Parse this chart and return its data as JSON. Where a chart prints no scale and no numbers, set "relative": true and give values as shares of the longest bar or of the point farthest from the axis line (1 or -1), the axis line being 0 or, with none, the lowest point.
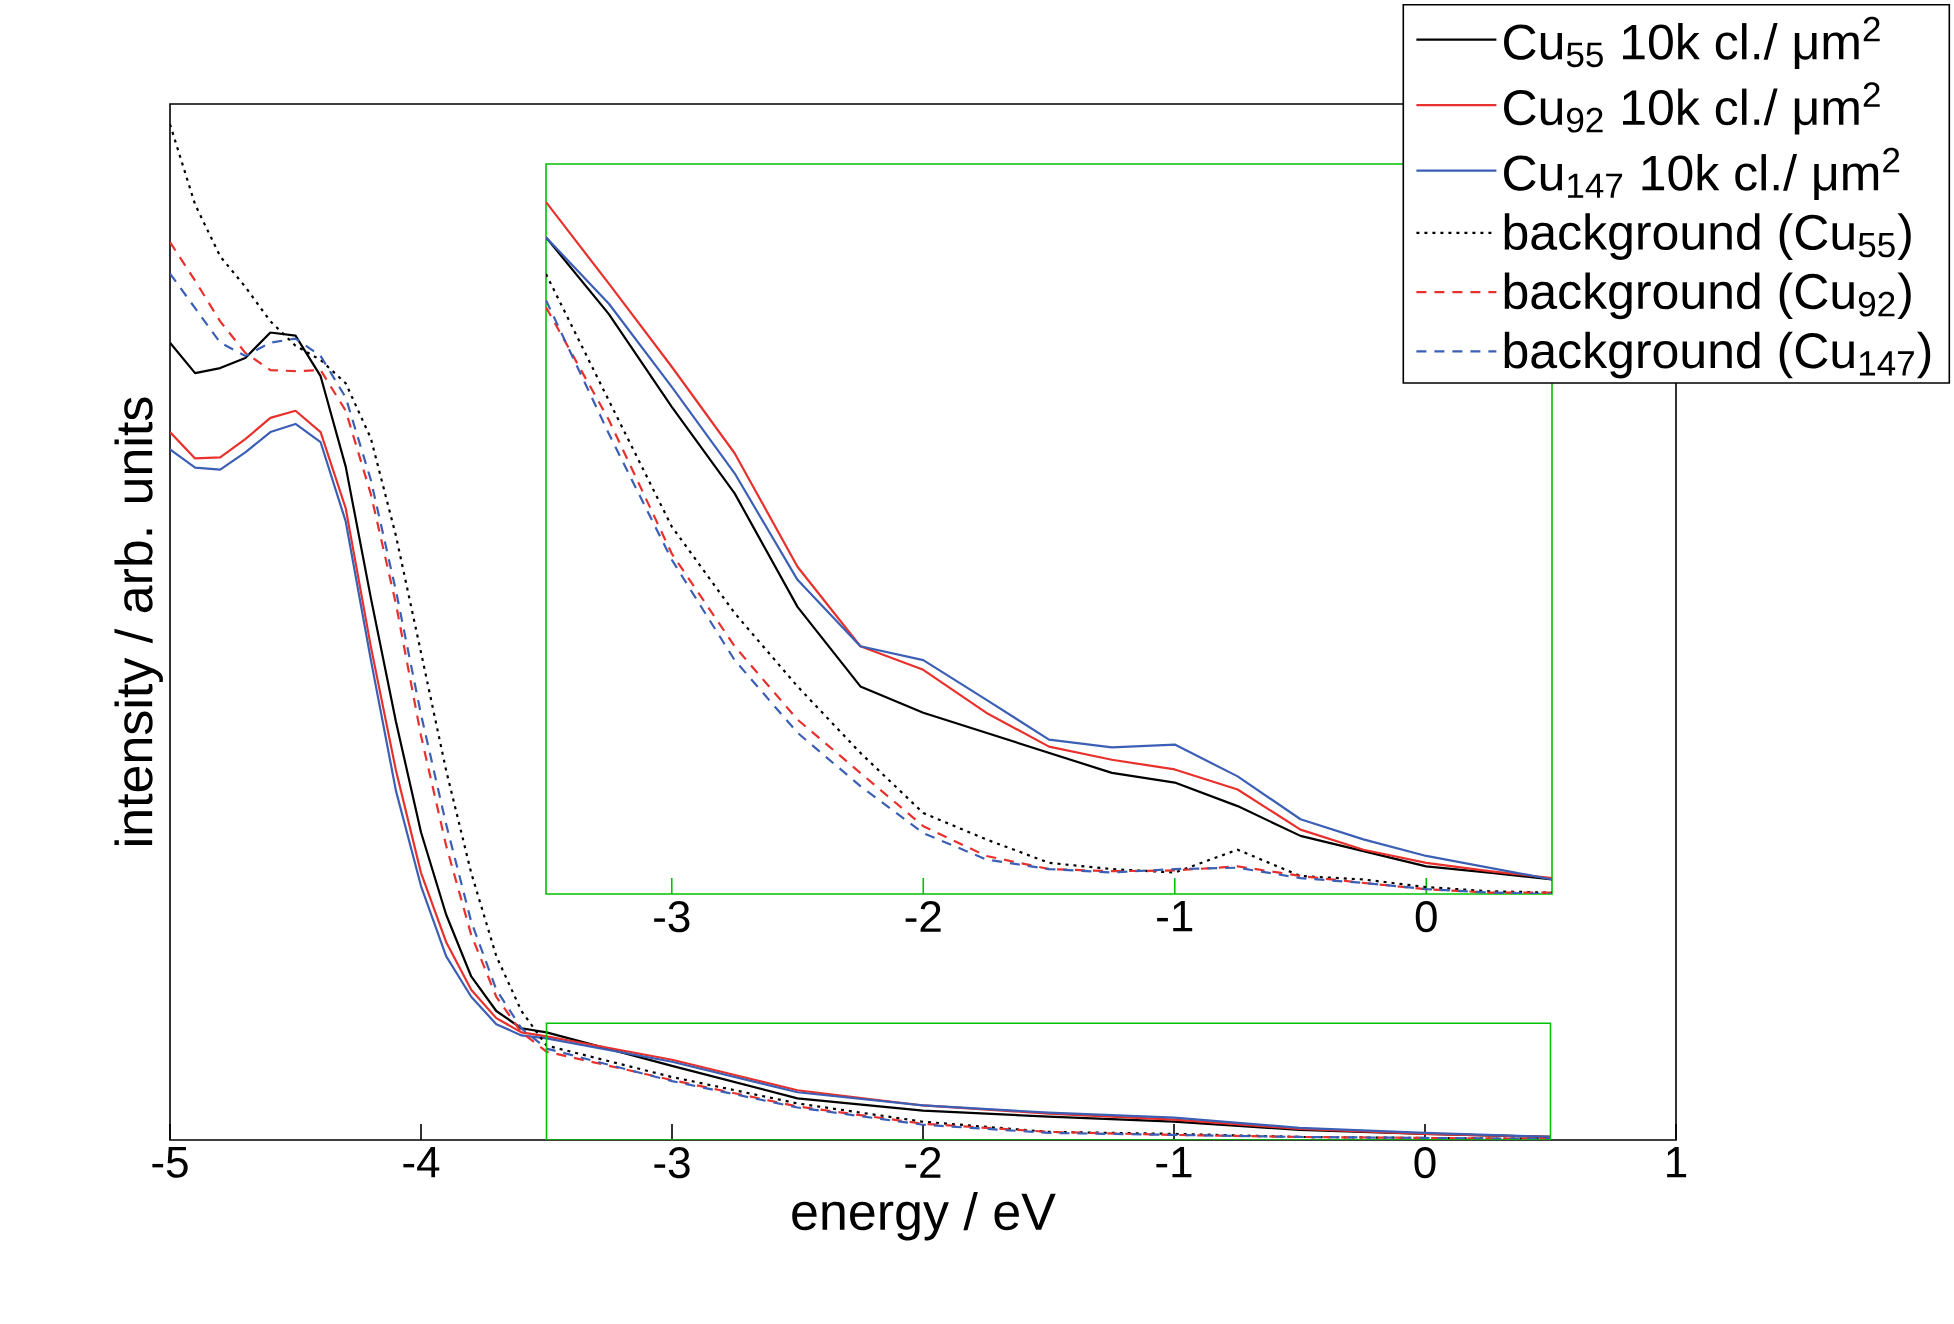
{
  "chart_data": [
    {
      "type": "line",
      "xlabel": "energy / eV",
      "ylabel": "intensity / arb. units",
      "relative": true,
      "xlim": [
        -5,
        1
      ],
      "xticks": [
        -5,
        -4,
        -3,
        -2,
        -1,
        0,
        1
      ],
      "legend": "top right",
      "x": [
        -5,
        -4.9,
        -4.8,
        -4.7,
        -4.6,
        -4.5,
        -4.4,
        -4.3,
        -4.2,
        -4.1,
        -4.0,
        -3.9,
        -3.8,
        -3.7,
        -3.6,
        -3.5,
        -3,
        -2.5,
        -2,
        -1.5,
        -1,
        -0.5,
        0,
        0.5
      ],
      "series": [
        {
          "name": "Cu$_{55}$ 10k cl./ μm$^{2}$",
          "color": "#000000",
          "line_style": "solid",
          "values": [
            0.785,
            0.755,
            0.76,
            0.77,
            0.795,
            0.792,
            0.752,
            0.663,
            0.534,
            0.412,
            0.303,
            0.222,
            0.161,
            0.127,
            0.11,
            0.106,
            0.073,
            0.041,
            0.029,
            0.023,
            0.018,
            0.01,
            0.006,
            0.003
          ]
        },
        {
          "name": "Cu$_{92}$ 10k cl./ μm$^{2}$",
          "color": "#e8302c",
          "line_style": "solid",
          "values": [
            0.697,
            0.671,
            0.672,
            0.69,
            0.711,
            0.718,
            0.697,
            0.622,
            0.486,
            0.364,
            0.263,
            0.195,
            0.148,
            0.12,
            0.106,
            0.102,
            0.079,
            0.049,
            0.034,
            0.026,
            0.02,
            0.011,
            0.006,
            0.003
          ]
        },
        {
          "name": "Cu$_{147}$ 10k cl./ μm$^{2}$",
          "color": "#3b5fb5",
          "line_style": "solid",
          "values": [
            0.68,
            0.662,
            0.66,
            0.677,
            0.697,
            0.705,
            0.687,
            0.609,
            0.473,
            0.344,
            0.25,
            0.181,
            0.141,
            0.114,
            0.103,
            0.1,
            0.077,
            0.047,
            0.034,
            0.027,
            0.022,
            0.012,
            0.007,
            0.003
          ]
        },
        {
          "name": "background (Cu$_{55}$)",
          "color": "#000000",
          "line_style": "dotted",
          "values": [
            1.0,
            0.921,
            0.87,
            0.84,
            0.806,
            0.782,
            0.768,
            0.745,
            0.691,
            0.595,
            0.48,
            0.364,
            0.263,
            0.181,
            0.127,
            0.093,
            0.062,
            0.036,
            0.018,
            0.008,
            0.006,
            0.003,
            0.002,
            0.001
          ]
        },
        {
          "name": "background (Cu$_{92}$)",
          "color": "#e8302c",
          "line_style": "dashed",
          "values": [
            0.884,
            0.846,
            0.806,
            0.775,
            0.758,
            0.757,
            0.758,
            0.718,
            0.636,
            0.528,
            0.398,
            0.29,
            0.202,
            0.141,
            0.106,
            0.087,
            0.059,
            0.033,
            0.016,
            0.008,
            0.005,
            0.003,
            0.002,
            0.001
          ]
        },
        {
          "name": "background (Cu$_{147}$)",
          "color": "#3b5fb5",
          "line_style": "dashed",
          "values": [
            0.853,
            0.819,
            0.785,
            0.772,
            0.785,
            0.789,
            0.772,
            0.731,
            0.65,
            0.541,
            0.419,
            0.311,
            0.215,
            0.148,
            0.11,
            0.09,
            0.058,
            0.032,
            0.015,
            0.007,
            0.005,
            0.003,
            0.002,
            0.001
          ]
        }
      ]
    },
    {
      "type": "line",
      "relative": true,
      "xlim": [
        -3.5,
        0.5
      ],
      "xticks": [
        -3,
        -2,
        -1,
        0
      ],
      "x": [
        -3.5,
        -3.25,
        -3,
        -2.75,
        -2.5,
        -2.25,
        -2,
        -1.75,
        -1.5,
        -1.25,
        -1,
        -0.75,
        -0.5,
        -0.25,
        0,
        0.25,
        0.5
      ],
      "series": [
        {
          "color": "#000000",
          "line_style": "solid",
          "values": [
            0.949,
            0.838,
            0.704,
            0.579,
            0.415,
            0.3,
            0.262,
            0.233,
            0.204,
            0.175,
            0.161,
            0.127,
            0.084,
            0.062,
            0.04,
            0.031,
            0.021
          ]
        },
        {
          "color": "#e8302c",
          "line_style": "solid",
          "values": [
            1.0,
            0.882,
            0.762,
            0.637,
            0.473,
            0.358,
            0.324,
            0.262,
            0.213,
            0.194,
            0.18,
            0.151,
            0.093,
            0.064,
            0.045,
            0.033,
            0.023
          ]
        },
        {
          "color": "#3b5fb5",
          "line_style": "solid",
          "values": [
            0.949,
            0.853,
            0.733,
            0.608,
            0.454,
            0.358,
            0.338,
            0.281,
            0.223,
            0.212,
            0.216,
            0.17,
            0.108,
            0.079,
            0.055,
            0.038,
            0.021
          ]
        },
        {
          "color": "#000000",
          "line_style": "dotted",
          "values": [
            0.896,
            0.713,
            0.531,
            0.406,
            0.3,
            0.204,
            0.117,
            0.079,
            0.045,
            0.036,
            0.031,
            0.064,
            0.026,
            0.021,
            0.01,
            0.004,
            0.002
          ]
        },
        {
          "color": "#e8302c",
          "line_style": "dashed",
          "values": [
            0.848,
            0.685,
            0.492,
            0.358,
            0.252,
            0.175,
            0.098,
            0.055,
            0.036,
            0.033,
            0.034,
            0.04,
            0.026,
            0.016,
            0.007,
            0.002,
            0.002
          ]
        },
        {
          "color": "#3b5fb5",
          "line_style": "dashed",
          "values": [
            0.858,
            0.665,
            0.483,
            0.338,
            0.233,
            0.156,
            0.088,
            0.05,
            0.036,
            0.031,
            0.036,
            0.038,
            0.023,
            0.016,
            0.007,
            0.002,
            0.0
          ]
        }
      ]
    }
  ]
}
